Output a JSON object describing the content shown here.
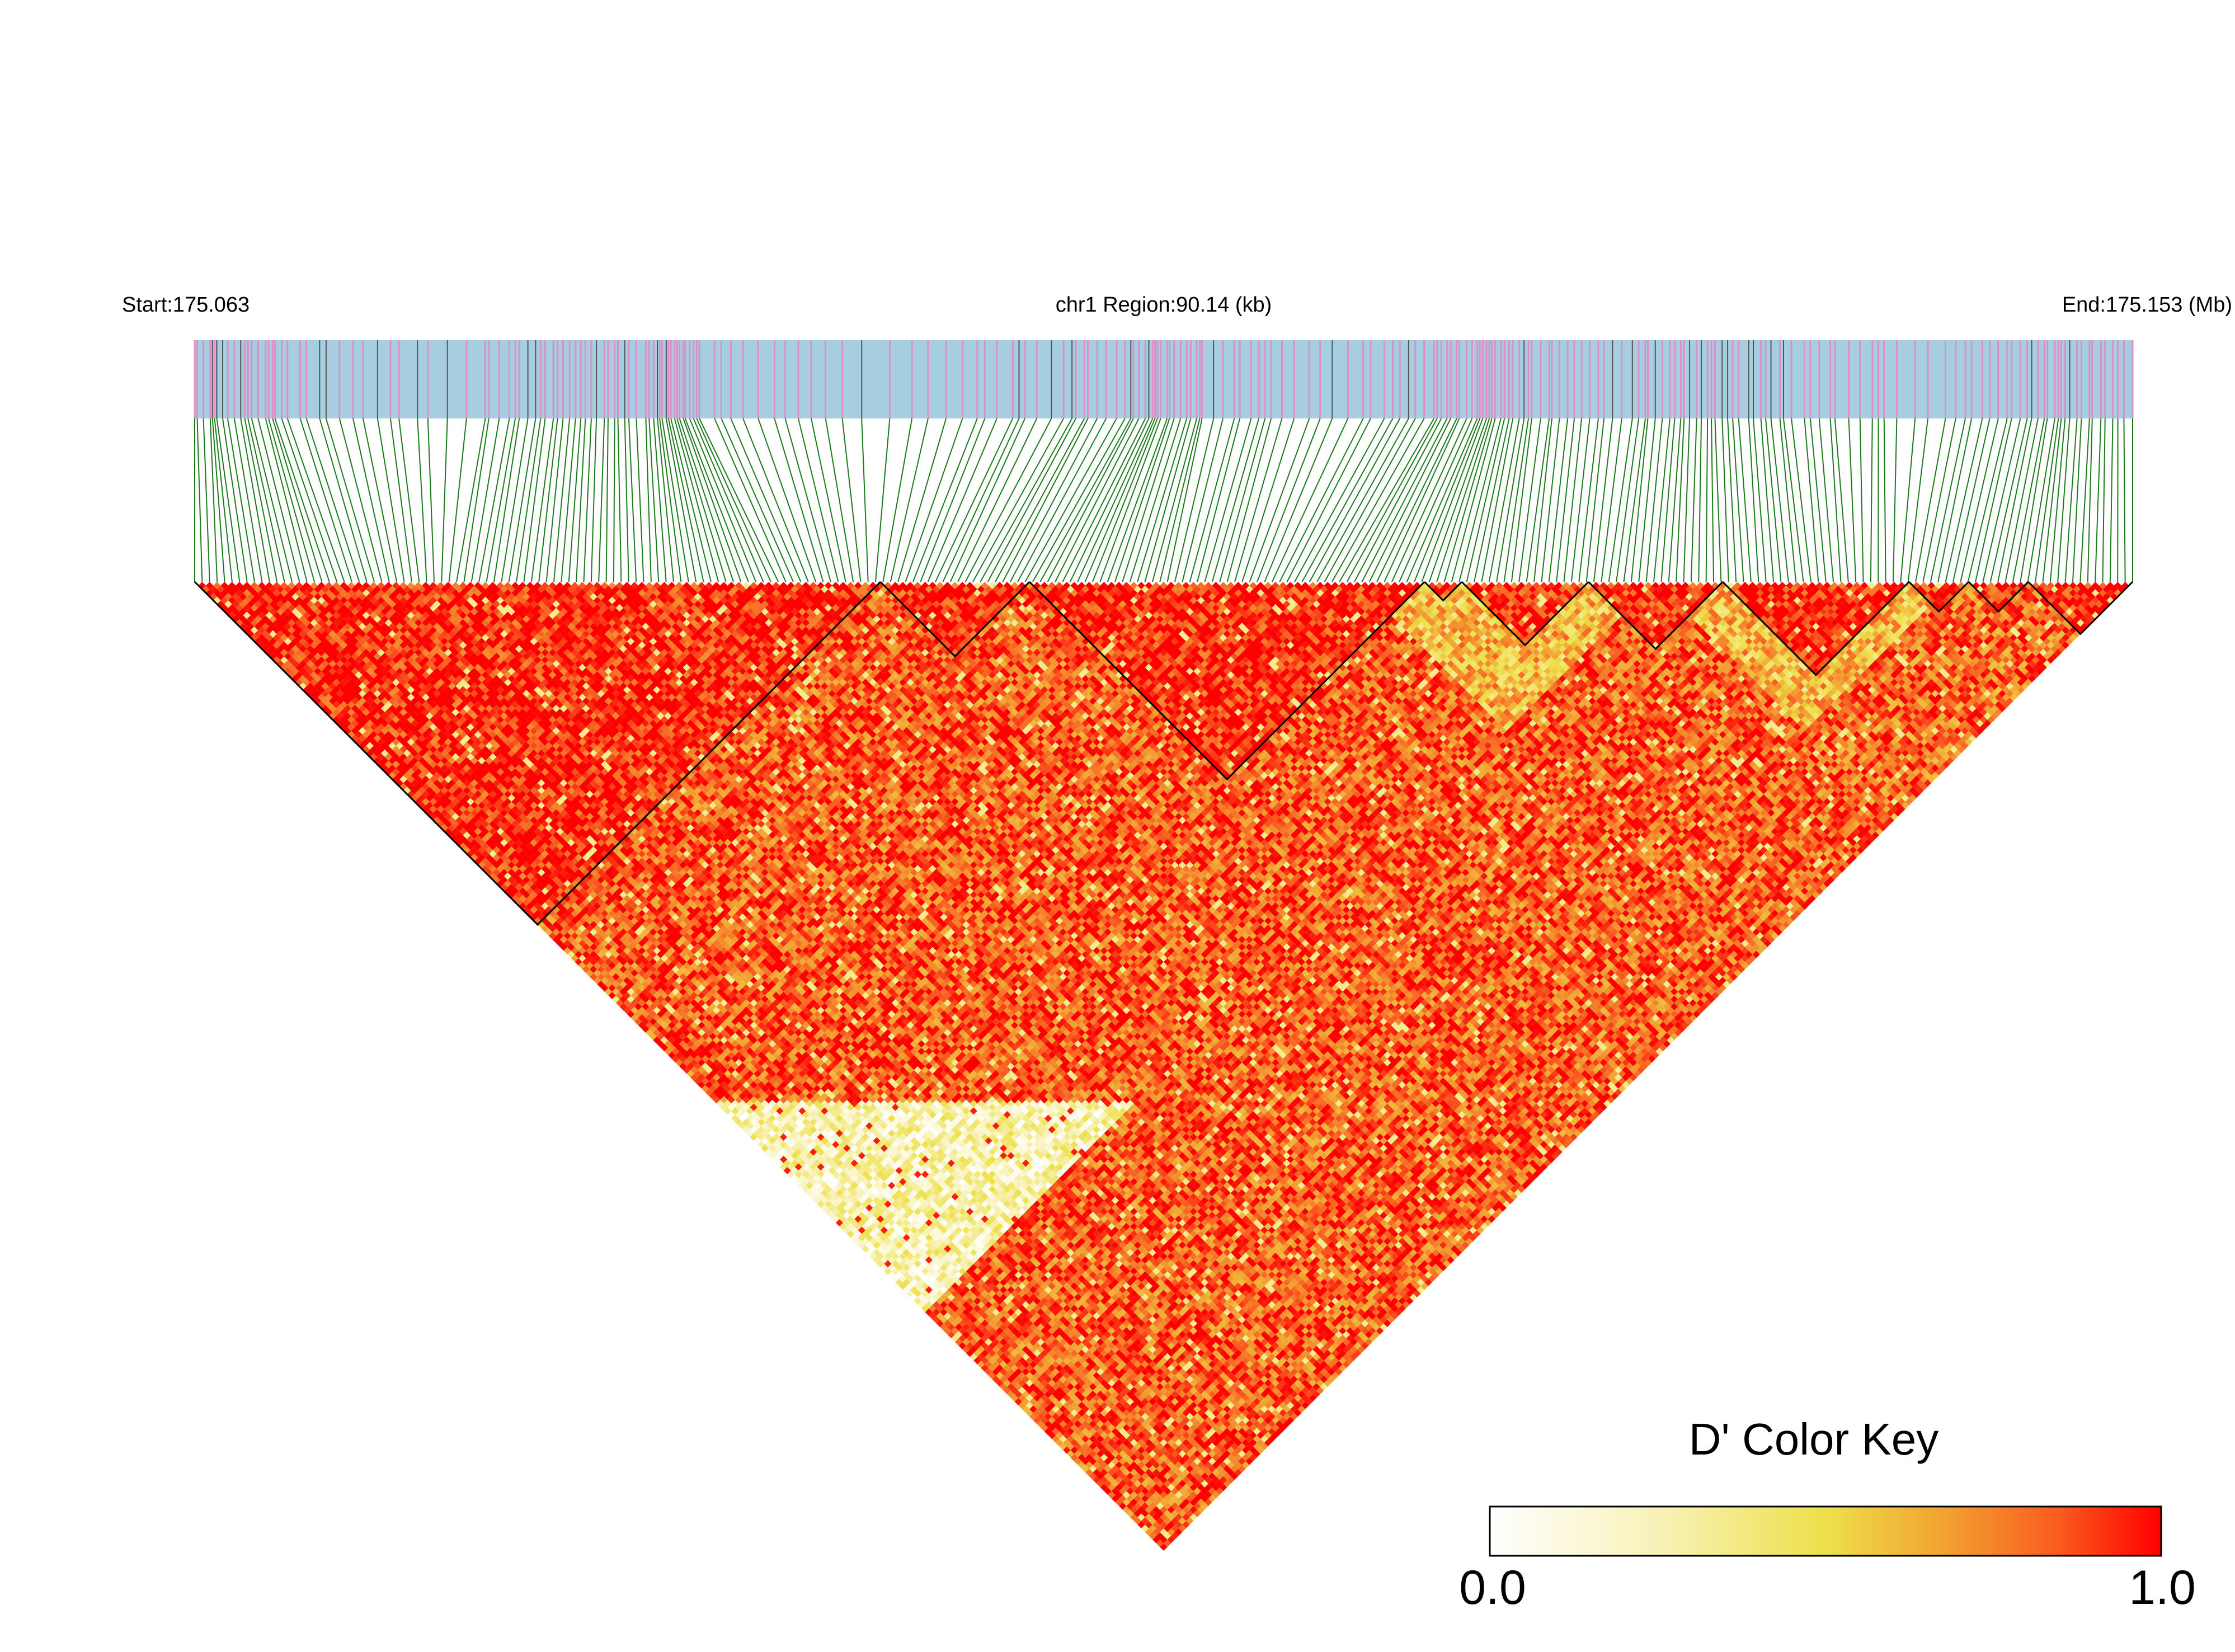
{
  "chart_data": {
    "type": "heatmap",
    "subtype": "linkage-disequilibrium-triangle",
    "chromosome": "chr1",
    "region_label": "chr1 Region:90.14 (kb)",
    "start_label": "Start:175.063",
    "end_label": "End:175.153 (Mb)",
    "start_mb": 175.063,
    "end_mb": 175.153,
    "region_kb": 90.14,
    "snp_count": 260,
    "measure": "D'",
    "color_key": {
      "title": "D' Color Key",
      "min_label": "0.0",
      "max_label": "1.0",
      "min": 0.0,
      "max": 1.0,
      "stops": [
        "#ffffff",
        "#f7f3b0",
        "#eedf4a",
        "#f3a030",
        "#fb5a1c",
        "#ff0000"
      ]
    },
    "blocks": [
      {
        "from": 0.0,
        "to": 0.355
      },
      {
        "from": 0.355,
        "to": 0.43
      },
      {
        "from": 0.43,
        "to": 0.635
      },
      {
        "from": 0.635,
        "to": 0.655
      },
      {
        "from": 0.655,
        "to": 0.72
      },
      {
        "from": 0.72,
        "to": 0.79
      },
      {
        "from": 0.79,
        "to": 0.885
      },
      {
        "from": 0.885,
        "to": 0.915
      },
      {
        "from": 0.915,
        "to": 0.945
      },
      {
        "from": 0.945,
        "to": 1.0
      }
    ],
    "colors": {
      "track_background": "#a6cde0",
      "snp_tick_light": "#df8fc8",
      "snp_tick_dark": "#555555",
      "connector_lines": "#1b7a1b",
      "high_ld": "#ff0000"
    }
  }
}
